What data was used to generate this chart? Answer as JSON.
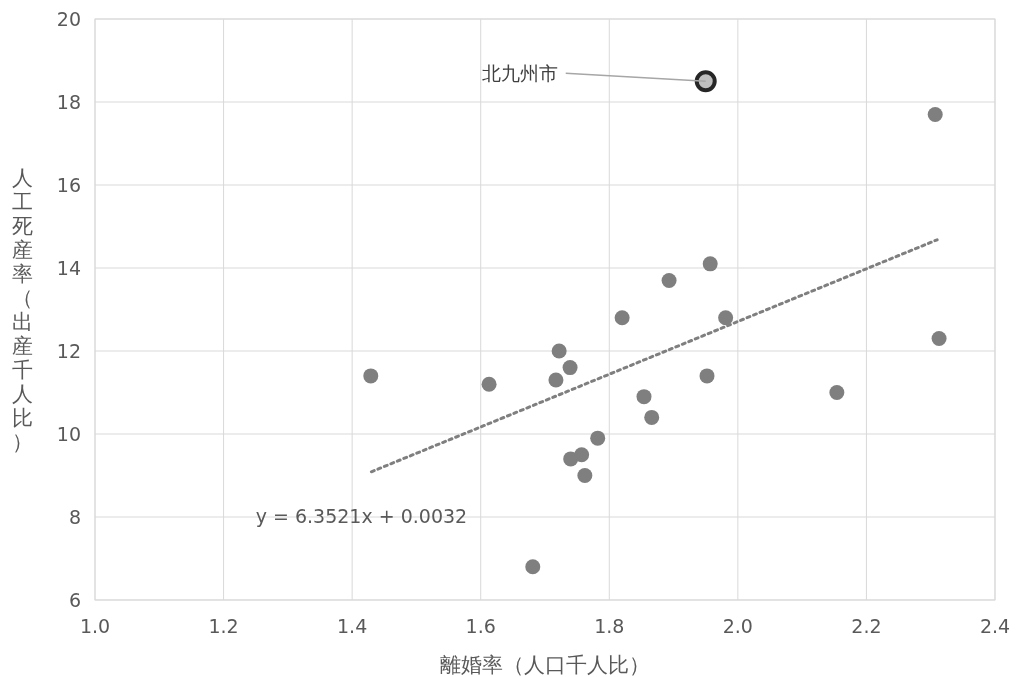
{
  "chart_data": {
    "type": "scatter",
    "xlabel": "離婚率（人口千人比）",
    "ylabel": "人工死産率（出産千人比）",
    "xlim": [
      1.0,
      2.4
    ],
    "ylim": [
      6,
      20
    ],
    "xticks": [
      {
        "value": 1.0,
        "label": "1.0"
      },
      {
        "value": 1.2,
        "label": "1.2"
      },
      {
        "value": 1.4,
        "label": "1.4"
      },
      {
        "value": 1.6,
        "label": "1.6"
      },
      {
        "value": 1.8,
        "label": "1.8"
      },
      {
        "value": 2.0,
        "label": "2.0"
      },
      {
        "value": 2.2,
        "label": "2.2"
      },
      {
        "value": 2.4,
        "label": "2.4"
      }
    ],
    "yticks": [
      6,
      8,
      10,
      12,
      14,
      16,
      18,
      20
    ],
    "grid": true,
    "series": [
      {
        "color": "#7f7f7f",
        "x": [
          1.429,
          1.613,
          1.717,
          1.722,
          1.739,
          1.74,
          1.757,
          1.762,
          1.681,
          1.782,
          1.82,
          1.854,
          1.866,
          1.893,
          1.957,
          1.952,
          1.981,
          2.154,
          2.307,
          2.313
        ],
        "values": [
          11.4,
          11.2,
          11.3,
          12.0,
          11.6,
          9.4,
          9.5,
          9.0,
          6.8,
          9.9,
          12.8,
          10.9,
          10.4,
          13.7,
          14.1,
          11.4,
          12.8,
          11.0,
          17.7,
          12.3
        ]
      },
      {
        "color": "#bfbfbf",
        "x": [
          1.95
        ],
        "values": [
          18.5
        ]
      },
      {
        "type": "line",
        "color": "#7f7f7f",
        "line_style": "dotted",
        "x": [
          1.43,
          2.31
        ],
        "values": [
          9.09,
          14.68
        ]
      }
    ],
    "annotations": [
      {
        "text": "北九州市",
        "x": 1.95,
        "y": 18.5
      },
      "y = 6.3521x + 0.0032"
    ]
  }
}
